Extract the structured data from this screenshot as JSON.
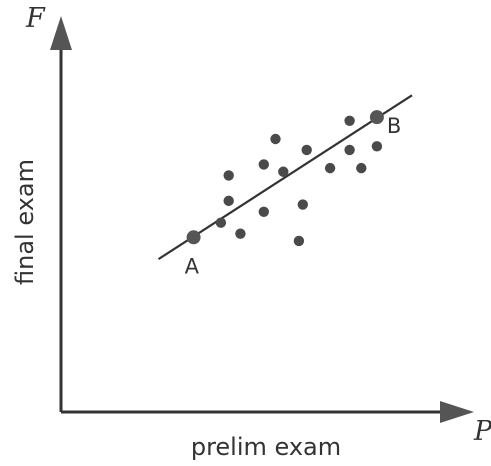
{
  "chart_data": {
    "type": "scatter",
    "xlabel": "prelim exam",
    "ylabel": "final exam",
    "x_axis_symbol": "P",
    "y_axis_symbol": "F",
    "xlim": [
      0,
      100
    ],
    "ylim": [
      0,
      100
    ],
    "points": [
      {
        "x": 41,
        "y": 52
      },
      {
        "x": 43,
        "y": 58
      },
      {
        "x": 43,
        "y": 65
      },
      {
        "x": 46,
        "y": 49
      },
      {
        "x": 52,
        "y": 55
      },
      {
        "x": 52,
        "y": 68
      },
      {
        "x": 55,
        "y": 75
      },
      {
        "x": 57,
        "y": 66
      },
      {
        "x": 61,
        "y": 47
      },
      {
        "x": 62,
        "y": 57
      },
      {
        "x": 63,
        "y": 72
      },
      {
        "x": 69,
        "y": 67
      },
      {
        "x": 74,
        "y": 72
      },
      {
        "x": 74,
        "y": 80
      },
      {
        "x": 77,
        "y": 67
      },
      {
        "x": 81,
        "y": 73
      }
    ],
    "fit_line": {
      "from": {
        "x": 25,
        "y": 42
      },
      "to": {
        "x": 90,
        "y": 87
      }
    },
    "labeled_points": [
      {
        "label": "A",
        "x": 34,
        "y": 48
      },
      {
        "label": "B",
        "x": 81,
        "y": 81
      }
    ],
    "grid": false,
    "legend": false
  }
}
